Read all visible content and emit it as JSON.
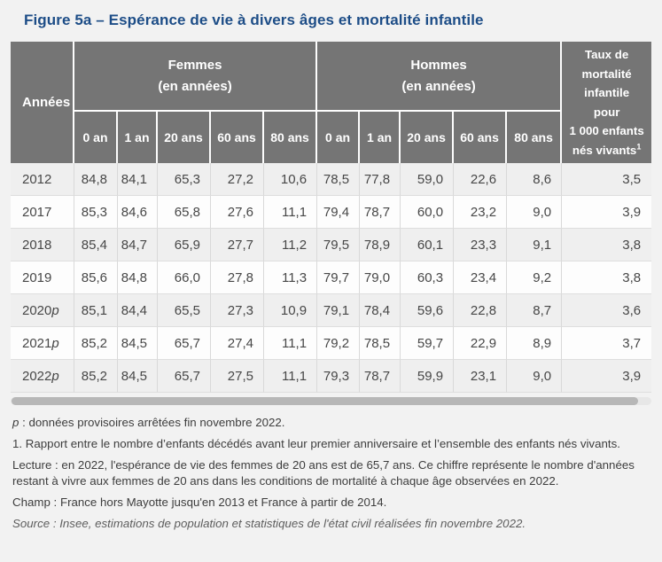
{
  "title": "Figure 5a – Espérance de vie à divers âges et mortalité infantile",
  "colors": {
    "title_blue": "#1d4d87",
    "header_bg": "#757575",
    "row_alt": "#efefef",
    "row_white": "#fdfdfd",
    "page_bg": "#f2f2f2",
    "scrollbar_thumb": "#b7b7b7"
  },
  "table": {
    "years_header": "Années",
    "groups": [
      {
        "name": "Femmes",
        "unit": "(en années)"
      },
      {
        "name": "Hommes",
        "unit": "(en années)"
      }
    ],
    "age_headers": [
      "0 an",
      "1 an",
      "20 ans",
      "60 ans",
      "80 ans"
    ],
    "rate_header": {
      "lines": [
        "Taux de",
        "mortalité",
        "infantile",
        "pour",
        "1 000 enfants",
        "nés vivants"
      ],
      "sup": "1"
    },
    "rows": [
      {
        "year": "2012",
        "suffix": "",
        "values": [
          "84,8",
          "84,1",
          "65,3",
          "27,2",
          "10,6",
          "78,5",
          "77,8",
          "59,0",
          "22,6",
          "8,6",
          "3,5"
        ]
      },
      {
        "year": "2017",
        "suffix": "",
        "values": [
          "85,3",
          "84,6",
          "65,8",
          "27,6",
          "11,1",
          "79,4",
          "78,7",
          "60,0",
          "23,2",
          "9,0",
          "3,9"
        ]
      },
      {
        "year": "2018",
        "suffix": "",
        "values": [
          "85,4",
          "84,7",
          "65,9",
          "27,7",
          "11,2",
          "79,5",
          "78,9",
          "60,1",
          "23,3",
          "9,1",
          "3,8"
        ]
      },
      {
        "year": "2019",
        "suffix": "",
        "values": [
          "85,6",
          "84,8",
          "66,0",
          "27,8",
          "11,3",
          "79,7",
          "79,0",
          "60,3",
          "23,4",
          "9,2",
          "3,8"
        ]
      },
      {
        "year": "2020",
        "suffix": "p",
        "values": [
          "85,1",
          "84,4",
          "65,5",
          "27,3",
          "10,9",
          "79,1",
          "78,4",
          "59,6",
          "22,8",
          "8,7",
          "3,6"
        ]
      },
      {
        "year": "2021",
        "suffix": "p",
        "values": [
          "85,2",
          "84,5",
          "65,7",
          "27,4",
          "11,1",
          "79,2",
          "78,5",
          "59,7",
          "22,9",
          "8,9",
          "3,7"
        ]
      },
      {
        "year": "2022",
        "suffix": "p",
        "values": [
          "85,2",
          "84,5",
          "65,7",
          "27,5",
          "11,1",
          "79,3",
          "78,7",
          "59,9",
          "23,1",
          "9,0",
          "3,9"
        ]
      }
    ]
  },
  "footnotes": {
    "p_symbol": "p",
    "p_text": " : données provisoires arrêtées fin novembre 2022.",
    "note1": "1. Rapport entre le nombre d’enfants décédés avant leur premier anniversaire et l’ensemble des enfants nés vivants.",
    "lecture": "Lecture : en 2022, l'espérance de vie des femmes de 20 ans est de 65,7 ans. Ce chiffre représente le nombre d'années restant à vivre aux femmes de 20 ans dans les conditions de mortalité à chaque âge observées en 2022.",
    "champ": "Champ : France hors Mayotte jusqu'en 2013 et France à partir de 2014.",
    "source": "Source : Insee, estimations de population et statistiques de l'état civil réalisées fin novembre 2022."
  }
}
